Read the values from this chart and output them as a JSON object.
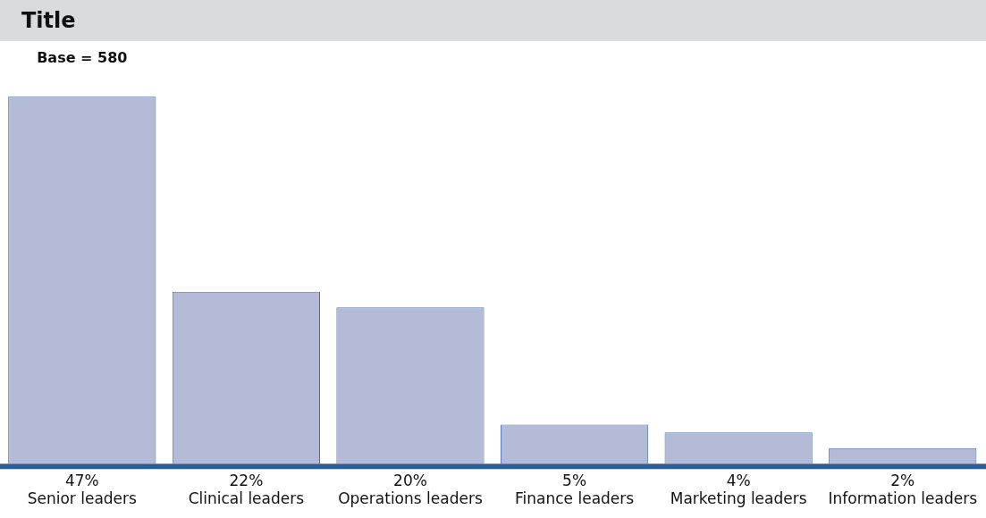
{
  "chart_data": {
    "type": "bar",
    "title": "Title",
    "annotations": [
      "Base = 580"
    ],
    "categories": [
      "Senior leaders",
      "Clinical leaders",
      "Operations leaders",
      "Finance leaders",
      "Marketing leaders",
      "Information leaders"
    ],
    "values": [
      47,
      22,
      20,
      5,
      4,
      2
    ],
    "value_labels": [
      "47%",
      "22%",
      "20%",
      "5%",
      "4%",
      "2%"
    ],
    "color": "#b3bbd6",
    "grid": false,
    "legend": false
  }
}
